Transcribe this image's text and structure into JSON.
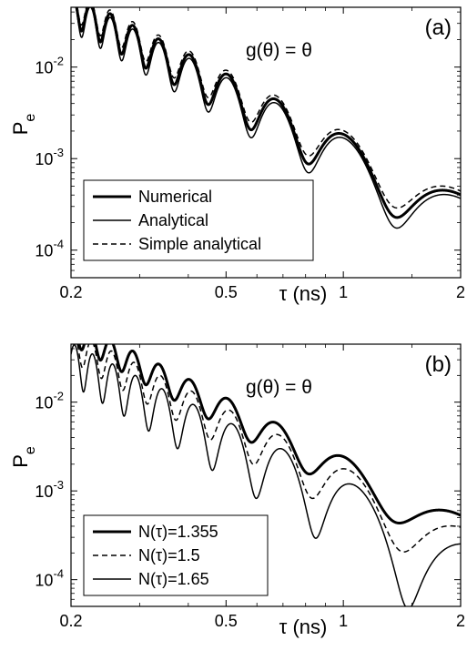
{
  "chart_data": [
    {
      "type": "line",
      "panel_label": "(a)",
      "annotation": "g(θ) = θ",
      "xlabel": "τ (ns)",
      "ylabel": "P",
      "ylabel_subscript": "e",
      "xscale": "log",
      "yscale": "log",
      "xlim": [
        0.2,
        2
      ],
      "ylim": [
        5e-05,
        0.045
      ],
      "xticks": [
        {
          "v": 0.2,
          "label": "0.2"
        },
        {
          "v": 0.5,
          "label": "0.5"
        },
        {
          "v": 1,
          "label": "1"
        },
        {
          "v": 2,
          "label": "2"
        }
      ],
      "yticks": [
        {
          "v": 0.0001,
          "base": "10",
          "exp": "-4"
        },
        {
          "v": 0.001,
          "base": "10",
          "exp": "-3"
        },
        {
          "v": 0.01,
          "base": "10",
          "exp": "-2"
        }
      ],
      "legend_position": "bottom-left",
      "series": [
        {
          "name": "Numerical",
          "style": "solid",
          "width": 3,
          "shift": 0,
          "amp_scale": 1.0,
          "phase": 0
        },
        {
          "name": "Analytical",
          "style": "solid",
          "width": 1.5,
          "shift": -0.04,
          "amp_scale": 1.05,
          "phase": 0.03
        },
        {
          "name": "Simple analytical",
          "style": "dashed",
          "width": 1.5,
          "shift": 0.04,
          "amp_scale": 0.95,
          "phase": -0.02
        }
      ]
    },
    {
      "type": "line",
      "panel_label": "(b)",
      "annotation": "g(θ) = θ",
      "xlabel": "τ (ns)",
      "ylabel": "P",
      "ylabel_subscript": "e",
      "xscale": "log",
      "yscale": "log",
      "xlim": [
        0.2,
        2
      ],
      "ylim": [
        5e-05,
        0.045
      ],
      "xticks": [
        {
          "v": 0.2,
          "label": "0.2"
        },
        {
          "v": 0.5,
          "label": "0.5"
        },
        {
          "v": 1,
          "label": "1"
        },
        {
          "v": 2,
          "label": "2"
        }
      ],
      "yticks": [
        {
          "v": 0.0001,
          "base": "10",
          "exp": "-4"
        },
        {
          "v": 0.001,
          "base": "10",
          "exp": "-3"
        },
        {
          "v": 0.01,
          "base": "10",
          "exp": "-2"
        }
      ],
      "legend_position": "bottom-left",
      "series": [
        {
          "name": "N(τ)=1.355",
          "style": "solid",
          "width": 3,
          "shift": 0.12,
          "amp_scale": 0.85,
          "phase": 0.0
        },
        {
          "name": "N(τ)=1.5",
          "style": "dashed",
          "width": 1.5,
          "shift": 0.0,
          "amp_scale": 1.0,
          "phase": 0.35
        },
        {
          "name": "N(τ)=1.65",
          "style": "solid",
          "width": 1.5,
          "shift": -0.14,
          "amp_scale": 1.2,
          "phase": 0.7
        }
      ]
    }
  ]
}
